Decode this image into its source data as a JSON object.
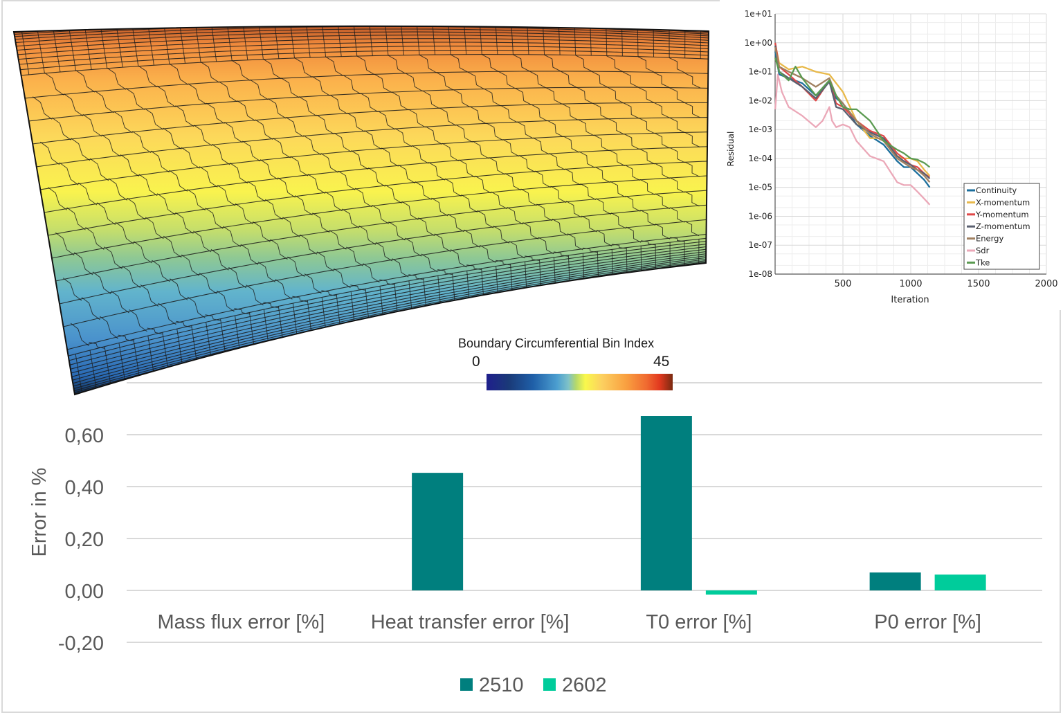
{
  "chart_data": [
    {
      "type": "bar",
      "title": "",
      "ylabel": "Error in %",
      "xlabel": "",
      "categories": [
        "Mass flux error [%]",
        "Heat transfer error [%]",
        "T0 error [%]",
        "P0 error [%]"
      ],
      "series": [
        {
          "name": "2510",
          "color": "#007f7e",
          "values": [
            0.0,
            0.453,
            0.672,
            0.069
          ]
        },
        {
          "name": "2602",
          "color": "#00cc9b",
          "values": [
            0.0,
            0.0,
            -0.016,
            0.061
          ]
        }
      ],
      "ylim": [
        -0.2,
        0.8
      ],
      "yticks": [
        -0.2,
        0.0,
        0.2,
        0.4,
        0.6,
        0.8
      ],
      "ytick_labels": [
        "-0,20",
        "0,00",
        "0,20",
        "0,40",
        "0,60",
        ""
      ],
      "grid": true,
      "legend": "bottom-center"
    },
    {
      "type": "line",
      "title": "",
      "xlabel": "Iteration",
      "ylabel": "Residual",
      "yscale": "log",
      "xlim": [
        0,
        2000
      ],
      "ylim": [
        1e-08,
        10
      ],
      "xticks": [
        500,
        1000,
        1500,
        2000
      ],
      "xtick_labels": [
        "500",
        "1000",
        "1500",
        "2000"
      ],
      "ytick_labels": [
        "1e+01",
        "1e+00",
        "1e-01",
        "1e-02",
        "1e-03",
        "1e-04",
        "1e-05",
        "1e-06",
        "1e-07",
        "1e-08"
      ],
      "grid": true,
      "legend": "bottom-right",
      "series": [
        {
          "name": "Continuity",
          "color": "#1a6e9c",
          "x": [
            1,
            30,
            100,
            200,
            300,
            400,
            450,
            500,
            600,
            700,
            800,
            900,
            950,
            1000,
            1050,
            1100,
            1140
          ],
          "y": [
            0.5,
            0.08,
            0.06,
            0.04,
            0.015,
            0.05,
            0.012,
            0.008,
            0.0015,
            0.0006,
            0.0003,
            8e-05,
            5e-05,
            5e-05,
            3e-05,
            1.8e-05,
            1e-05
          ]
        },
        {
          "name": "X-momentum",
          "color": "#e8b94a",
          "x": [
            1,
            30,
            100,
            200,
            300,
            400,
            450,
            500,
            600,
            700,
            800,
            900,
            950,
            1000,
            1050,
            1100,
            1140
          ],
          "y": [
            0.9,
            0.2,
            0.12,
            0.15,
            0.1,
            0.08,
            0.04,
            0.02,
            0.002,
            0.0005,
            0.0005,
            0.00012,
            0.0001,
            0.0001,
            8e-05,
            4e-05,
            2.5e-05
          ]
        },
        {
          "name": "Y-momentum",
          "color": "#e04848",
          "x": [
            1,
            30,
            100,
            200,
            300,
            400,
            450,
            500,
            600,
            700,
            800,
            900,
            950,
            1000,
            1050,
            1100,
            1140
          ],
          "y": [
            1.0,
            0.15,
            0.08,
            0.03,
            0.01,
            0.05,
            0.008,
            0.006,
            0.002,
            0.0009,
            0.0006,
            0.00015,
            0.0001,
            6e-05,
            5e-05,
            3e-05,
            2.2e-05
          ]
        },
        {
          "name": "Z-momentum",
          "color": "#5a6070",
          "x": [
            1,
            30,
            100,
            200,
            300,
            400,
            450,
            500,
            600,
            700,
            800,
            900,
            950,
            1000,
            1050,
            1100,
            1140
          ],
          "y": [
            0.8,
            0.1,
            0.06,
            0.03,
            0.012,
            0.045,
            0.006,
            0.005,
            0.0015,
            0.0008,
            0.0005,
            0.00012,
            8e-05,
            6e-05,
            4e-05,
            3e-05,
            2e-05
          ]
        },
        {
          "name": "Energy",
          "color": "#a08060",
          "x": [
            1,
            30,
            100,
            200,
            300,
            400,
            450,
            500,
            600,
            700,
            800,
            900,
            950,
            1000,
            1050,
            1100,
            1140
          ],
          "y": [
            0.7,
            0.15,
            0.1,
            0.06,
            0.03,
            0.06,
            0.015,
            0.008,
            0.002,
            0.0007,
            0.0004,
            0.0001,
            7e-05,
            5e-05,
            4e-05,
            2.5e-05,
            1.5e-05
          ]
        },
        {
          "name": "Sdr",
          "color": "#eba8b8",
          "x": [
            1,
            20,
            50,
            100,
            200,
            300,
            350,
            400,
            420,
            450,
            500,
            550,
            600,
            700,
            800,
            900,
            950,
            1000,
            1050,
            1100,
            1140
          ],
          "y": [
            0.005,
            0.08,
            0.02,
            0.006,
            0.003,
            0.0012,
            0.002,
            0.006,
            0.002,
            0.0012,
            0.0015,
            0.0012,
            0.0004,
            0.00012,
            8e-05,
            1.5e-05,
            1.2e-05,
            1.2e-05,
            7e-06,
            4e-06,
            2.5e-06
          ]
        },
        {
          "name": "Tke",
          "color": "#5a9a50",
          "x": [
            1,
            30,
            100,
            150,
            200,
            300,
            400,
            450,
            500,
            550,
            600,
            700,
            800,
            900,
            950,
            1000,
            1050,
            1100,
            1140
          ],
          "y": [
            0.3,
            0.1,
            0.05,
            0.15,
            0.06,
            0.015,
            0.05,
            0.015,
            0.006,
            0.005,
            0.005,
            0.002,
            0.0004,
            0.0002,
            0.00015,
            0.0001,
            9e-05,
            7e-05,
            5e-05
          ]
        }
      ]
    }
  ],
  "colorbar": {
    "title": "Boundary Circumferential Bin Index",
    "min_label": "0",
    "max_label": "45",
    "min": 0,
    "max": 45
  },
  "mesh": {
    "description": "Polyhedral mesh cross-section colored by boundary circumferential bin index",
    "colors_top_to_bottom": [
      "#d06a30",
      "#f5a445",
      "#fcd35a",
      "#f9f44e",
      "#c9e068",
      "#8cc894",
      "#5fb0cc",
      "#4a92cc",
      "#2a6ab0",
      "#0e2a50"
    ]
  }
}
